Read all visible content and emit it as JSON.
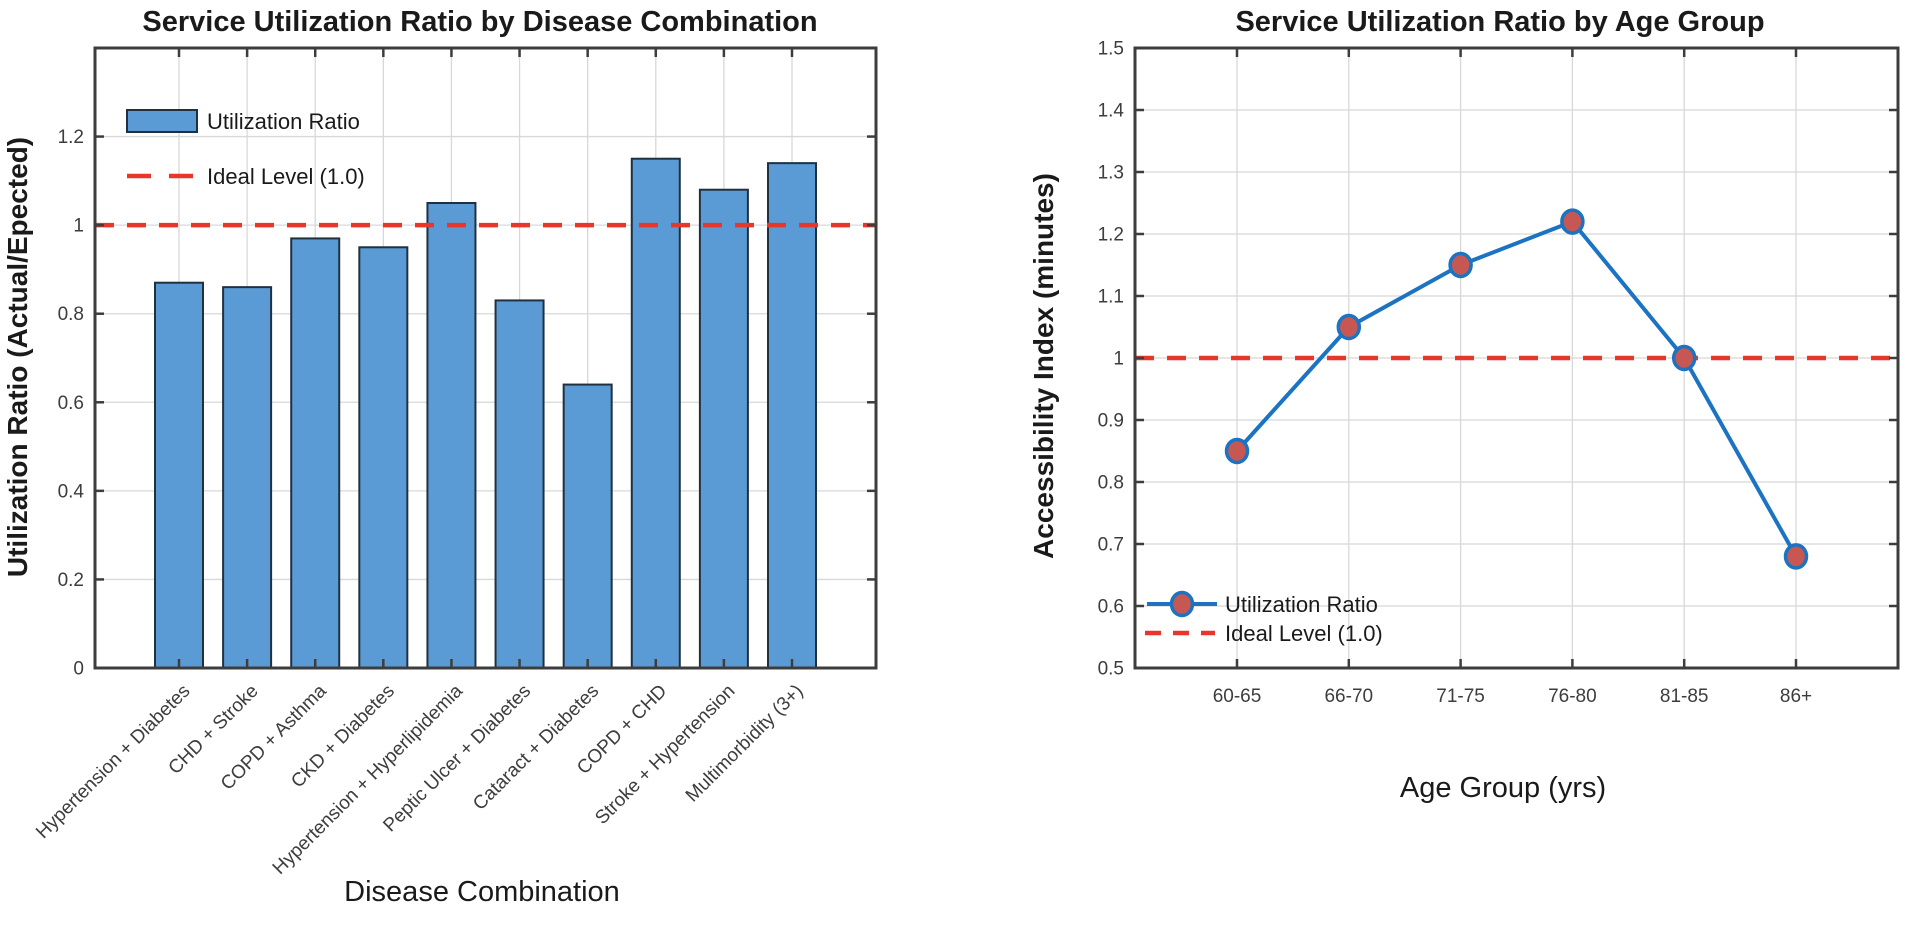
{
  "figure": {
    "background": "#ffffff"
  },
  "colors": {
    "bar_fill": "#5B9BD5",
    "bar_edge": "#20303F",
    "line": "#1B73C2",
    "marker_fill": "#C65753",
    "reference_red": "#E8362A",
    "grid": "#D8D8D8",
    "frame": "#3D3D3D",
    "tick_text": "#3D3D3D",
    "label_text": "#1A1A1A"
  },
  "chart_data": [
    {
      "type": "bar",
      "title": "Service Utilization Ratio by Disease Combination",
      "xlabel": "Disease Combination",
      "ylabel": "Utilization Ratio (Actual/Epected)",
      "categories": [
        "Hypertension + Diabetes",
        "CHD + Stroke",
        "COPD + Asthma",
        "CKD + Diabetes",
        "Hypertension + Hyperlipidemia",
        "Peptic Ulcer + Diabetes",
        "Cataract + Diabetes",
        "COPD + CHD",
        "Stroke + Hypertension",
        "Multimorbidity (3+)"
      ],
      "values": [
        0.87,
        0.86,
        0.97,
        0.95,
        1.05,
        0.83,
        0.64,
        1.15,
        1.08,
        1.14
      ],
      "series_name": "Utilization Ratio",
      "ylim": [
        0,
        1.4
      ],
      "ytick_values": [
        0,
        0.2,
        0.4,
        0.6,
        0.8,
        1,
        1.2
      ],
      "ytick_labels": [
        "0",
        "0.2",
        "0.4",
        "0.6",
        "0.8",
        "1",
        "1.2"
      ],
      "grid": true,
      "reference_line": {
        "value": 1.0,
        "label": "Ideal Level (1.0)"
      },
      "legend": {
        "position": "top-left",
        "entries": [
          "Utilization Ratio",
          "Ideal Level (1.0)"
        ]
      }
    },
    {
      "type": "line",
      "title": "Service Utilization Ratio by Age Group",
      "xlabel": "Age Group (yrs)",
      "ylabel": "Accessibility Index (minutes)",
      "categories": [
        "60-65",
        "66-70",
        "71-75",
        "76-80",
        "81-85",
        "86+"
      ],
      "values": [
        0.85,
        1.05,
        1.15,
        1.22,
        1.0,
        0.68
      ],
      "series_name": "Utilization Ratio",
      "ylim": [
        0.5,
        1.5
      ],
      "ytick_values": [
        0.5,
        0.6,
        0.7,
        0.8,
        0.9,
        1,
        1.1,
        1.2,
        1.3,
        1.4,
        1.5
      ],
      "ytick_labels": [
        "0.5",
        "0.6",
        "0.7",
        "0.8",
        "0.9",
        "1",
        "1.1",
        "1.2",
        "1.3",
        "1.4",
        "1.5"
      ],
      "grid": true,
      "reference_line": {
        "value": 1.0,
        "label": "Ideal Level (1.0)"
      },
      "legend": {
        "position": "bottom-left",
        "entries": [
          "Utilization Ratio",
          "Ideal Level (1.0)"
        ]
      }
    }
  ]
}
